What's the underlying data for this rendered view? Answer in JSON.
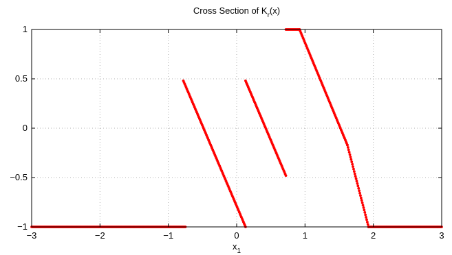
{
  "chart_data": {
    "type": "scatter",
    "title": {
      "main": "Cross Section of K",
      "sub": "r",
      "suffix": "(x)"
    },
    "xlabel": {
      "main": "x",
      "sub": "1"
    },
    "ylabel": "",
    "xlim": [
      -3,
      3
    ],
    "ylim": [
      -1,
      1
    ],
    "grid": true,
    "xticks": [
      -3,
      -2,
      -1,
      0,
      1,
      2,
      3
    ],
    "xtick_labels": [
      "−3",
      "−2",
      "−1",
      "0",
      "1",
      "2",
      "3"
    ],
    "yticks": [
      -1,
      -0.5,
      0,
      0.5,
      1
    ],
    "ytick_labels": [
      "−1",
      "−0.5",
      "0",
      "0.5",
      "1"
    ],
    "marker_color": "#ff0000",
    "series": [
      {
        "segments": [
          {
            "x_start": -3.0,
            "x_end": -0.75,
            "y_start": -1.0,
            "y_end": -1.0,
            "count": 190
          },
          {
            "x_start": -0.78,
            "x_end": 0.13,
            "y_start": 0.48,
            "y_end": -1.0,
            "count": 90
          },
          {
            "x_start": 0.13,
            "x_end": 0.72,
            "y_start": 0.48,
            "y_end": -0.48,
            "count": 60
          },
          {
            "x_start": 0.72,
            "x_end": 0.92,
            "y_start": 1.0,
            "y_end": 1.0,
            "count": 18
          },
          {
            "x_start": 0.92,
            "x_end": 1.62,
            "y_start": 1.0,
            "y_end": -0.17,
            "count": 70
          },
          {
            "x_start": 1.62,
            "x_end": 1.93,
            "y_start": -0.17,
            "y_end": -1.0,
            "count": 35
          },
          {
            "x_start": 1.93,
            "x_end": 3.0,
            "y_start": -1.0,
            "y_end": -1.0,
            "count": 90
          }
        ]
      }
    ]
  }
}
